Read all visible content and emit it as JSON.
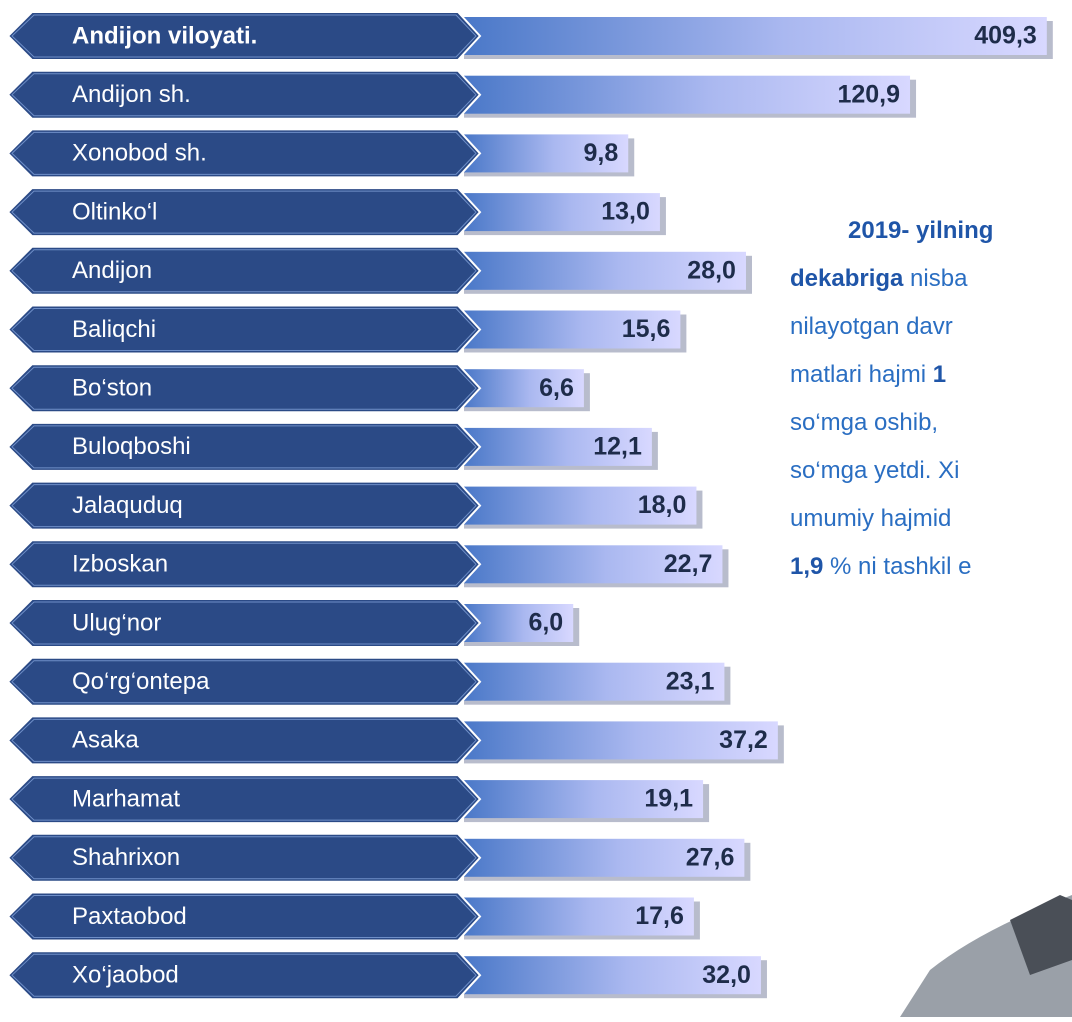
{
  "chart_data": {
    "type": "bar",
    "orientation": "horizontal",
    "log_scale": true,
    "xlim": [
      2,
      1000
    ],
    "bold_first": true,
    "categories": [
      "Andijon viloyati.",
      "Andijon  sh.",
      "Xonobod sh.",
      "Oltinko‘l",
      "Andijon",
      "Baliqchi",
      "Bo‘ston",
      "Buloqboshi",
      "Jalaquduq",
      "Izboskan",
      "Ulug‘nor",
      "Qo‘rg‘ontepa",
      "Asaka",
      "Marhamat",
      "Shahrixon",
      "Paxtaobod",
      "Xo‘jaobod"
    ],
    "values": [
      409.3,
      120.9,
      9.8,
      13.0,
      28.0,
      15.6,
      6.6,
      12.1,
      18.0,
      22.7,
      6.0,
      23.1,
      37.2,
      19.1,
      27.6,
      17.6,
      32.0
    ],
    "value_labels": [
      "409,3",
      "120,9",
      "9,8",
      "13,0",
      "28,0",
      "15,6",
      "6,6",
      "12,1",
      "18,0",
      "22,7",
      "6,0",
      "23,1",
      "37,2",
      "19,1",
      "27,6",
      "17,6",
      "32,0"
    ],
    "color": "#4a78c8",
    "label_color": "#2b4a86",
    "annotation": [
      [
        {
          "text": "2019- yilning",
          "bold": true
        }
      ],
      [
        {
          "text": "dekabriga",
          "bold": true
        },
        {
          "text": " nisba",
          "bold": false
        }
      ],
      [
        {
          "text": "nilayotgan davr",
          "bold": false
        }
      ],
      [
        {
          "text": "matlari hajmi ",
          "bold": false
        },
        {
          "text": "1",
          "bold": true
        }
      ],
      [
        {
          "text": "so‘mga oshib,",
          "bold": false
        }
      ],
      [
        {
          "text": "so‘mga yetdi. Xi",
          "bold": false
        }
      ],
      [
        {
          "text": "umumiy hajmid",
          "bold": false
        }
      ],
      [
        {
          "text": "1,9",
          "bold": true
        },
        {
          "text": " % ni tashkil e",
          "bold": false
        }
      ]
    ]
  }
}
